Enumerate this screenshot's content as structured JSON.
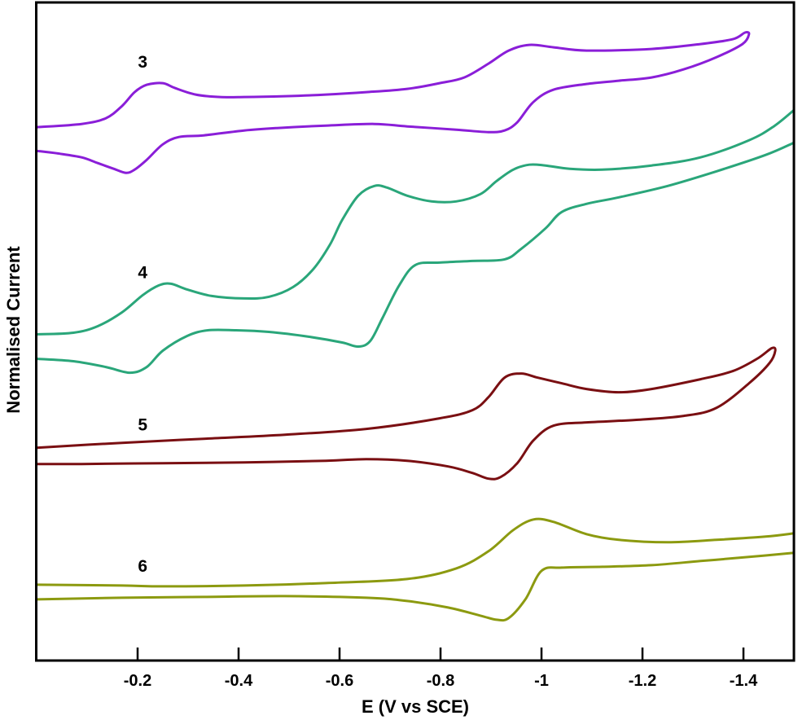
{
  "chart_data": {
    "type": "line",
    "title": "",
    "xlabel": "E (V vs SCE)",
    "ylabel": "Normalised Current",
    "xlim": [
      0,
      -1.5
    ],
    "ylim": [
      0,
      80.7
    ],
    "grid": false,
    "x_ticks": [
      -0.2,
      -0.4,
      -0.6,
      -0.8,
      -1,
      -1.2,
      -1.4
    ],
    "x_tick_labels": [
      "-0.2",
      "-0.4",
      "-0.6",
      "-0.8",
      "-1",
      "-1.2",
      "-1.4"
    ],
    "series": [
      {
        "name": "3",
        "color": "#8a1ed8",
        "label_pos": [
          -0.21,
          73.5
        ],
        "points": [
          [
            0,
            65.4
          ],
          [
            -0.089,
            65.8
          ],
          [
            -0.137,
            66.5
          ],
          [
            -0.169,
            68.0
          ],
          [
            -0.194,
            69.7
          ],
          [
            -0.218,
            70.6
          ],
          [
            -0.25,
            70.8
          ],
          [
            -0.274,
            70.2
          ],
          [
            -0.315,
            69.4
          ],
          [
            -0.363,
            69.1
          ],
          [
            -0.411,
            69.1
          ],
          [
            -0.492,
            69.2
          ],
          [
            -0.573,
            69.4
          ],
          [
            -0.653,
            69.7
          ],
          [
            -0.734,
            70.1
          ],
          [
            -0.798,
            70.8
          ],
          [
            -0.847,
            71.5
          ],
          [
            -0.895,
            73.2
          ],
          [
            -0.935,
            74.8
          ],
          [
            -0.976,
            75.5
          ],
          [
            -1.024,
            75.2
          ],
          [
            -1.089,
            74.8
          ],
          [
            -1.218,
            75.0
          ],
          [
            -1.315,
            75.6
          ],
          [
            -1.379,
            76.2
          ],
          [
            -1.403,
            77.0
          ],
          [
            -1.411,
            76.8
          ],
          [
            -1.398,
            75.6
          ],
          [
            -1.347,
            74.0
          ],
          [
            -1.282,
            72.5
          ],
          [
            -1.218,
            71.5
          ],
          [
            -1.153,
            71.1
          ],
          [
            -1.089,
            70.7
          ],
          [
            -1.024,
            70.0
          ],
          [
            -0.984,
            68.5
          ],
          [
            -0.952,
            66.0
          ],
          [
            -0.927,
            65.0
          ],
          [
            -0.895,
            64.8
          ],
          [
            -0.831,
            65.1
          ],
          [
            -0.734,
            65.5
          ],
          [
            -0.669,
            65.8
          ],
          [
            -0.573,
            65.6
          ],
          [
            -0.476,
            65.3
          ],
          [
            -0.411,
            65.0
          ],
          [
            -0.331,
            64.4
          ],
          [
            -0.282,
            64.2
          ],
          [
            -0.25,
            63.3
          ],
          [
            -0.218,
            61.4
          ],
          [
            -0.194,
            60.2
          ],
          [
            -0.177,
            59.8
          ],
          [
            -0.153,
            60.3
          ],
          [
            -0.121,
            61.0
          ],
          [
            -0.089,
            61.7
          ],
          [
            -0.04,
            62.2
          ],
          [
            0,
            62.5
          ]
        ]
      },
      {
        "name": "4",
        "color": "#2aa67a",
        "label_pos": [
          -0.21,
          47.7
        ],
        "points": [
          [
            0,
            40.0
          ],
          [
            -0.073,
            40.2
          ],
          [
            -0.121,
            41.0
          ],
          [
            -0.169,
            42.7
          ],
          [
            -0.21,
            44.8
          ],
          [
            -0.242,
            46.0
          ],
          [
            -0.266,
            46.2
          ],
          [
            -0.298,
            45.5
          ],
          [
            -0.347,
            44.7
          ],
          [
            -0.411,
            44.4
          ],
          [
            -0.46,
            44.6
          ],
          [
            -0.508,
            45.8
          ],
          [
            -0.548,
            48.0
          ],
          [
            -0.581,
            51.0
          ],
          [
            -0.605,
            54.0
          ],
          [
            -0.637,
            57.0
          ],
          [
            -0.669,
            58.2
          ],
          [
            -0.694,
            58.0
          ],
          [
            -0.734,
            57.0
          ],
          [
            -0.782,
            56.3
          ],
          [
            -0.831,
            56.3
          ],
          [
            -0.879,
            57.2
          ],
          [
            -0.911,
            58.8
          ],
          [
            -0.944,
            60.2
          ],
          [
            -0.976,
            60.8
          ],
          [
            -1.008,
            60.7
          ],
          [
            -1.056,
            60.3
          ],
          [
            -1.121,
            60.2
          ],
          [
            -1.218,
            60.7
          ],
          [
            -1.315,
            61.7
          ],
          [
            -1.411,
            63.8
          ],
          [
            -1.46,
            65.5
          ],
          [
            -1.5,
            67.5
          ]
        ],
        "return_points": [
          [
            -1.5,
            63.5
          ],
          [
            -1.444,
            62.0
          ],
          [
            -1.347,
            60.0
          ],
          [
            -1.25,
            58.2
          ],
          [
            -1.153,
            56.8
          ],
          [
            -1.089,
            56.0
          ],
          [
            -1.04,
            55.0
          ],
          [
            -1.008,
            53.0
          ],
          [
            -0.96,
            50.5
          ],
          [
            -0.927,
            49.2
          ],
          [
            -0.863,
            49.0
          ],
          [
            -0.798,
            48.8
          ],
          [
            -0.75,
            48.5
          ],
          [
            -0.718,
            46.0
          ],
          [
            -0.685,
            42.0
          ],
          [
            -0.661,
            39.2
          ],
          [
            -0.637,
            38.5
          ],
          [
            -0.605,
            39.0
          ],
          [
            -0.54,
            39.7
          ],
          [
            -0.46,
            40.3
          ],
          [
            -0.395,
            40.5
          ],
          [
            -0.339,
            40.5
          ],
          [
            -0.298,
            39.8
          ],
          [
            -0.25,
            38.0
          ],
          [
            -0.218,
            36.0
          ],
          [
            -0.185,
            35.3
          ],
          [
            -0.137,
            36.0
          ],
          [
            -0.073,
            36.7
          ],
          [
            0,
            37.0
          ]
        ]
      },
      {
        "name": "5",
        "color": "#7a0f12",
        "label_pos": [
          -0.21,
          29.0
        ],
        "points": [
          [
            0,
            26.1
          ],
          [
            -0.169,
            26.7
          ],
          [
            -0.331,
            27.2
          ],
          [
            -0.492,
            27.7
          ],
          [
            -0.653,
            28.4
          ],
          [
            -0.798,
            29.7
          ],
          [
            -0.863,
            30.7
          ],
          [
            -0.895,
            32.3
          ],
          [
            -0.927,
            34.7
          ],
          [
            -0.96,
            35.2
          ],
          [
            -0.992,
            34.7
          ],
          [
            -1.04,
            34.0
          ],
          [
            -1.089,
            33.3
          ],
          [
            -1.153,
            32.9
          ],
          [
            -1.218,
            33.3
          ],
          [
            -1.315,
            34.5
          ],
          [
            -1.379,
            35.5
          ],
          [
            -1.427,
            37.0
          ],
          [
            -1.456,
            38.3
          ],
          [
            -1.463,
            38.0
          ],
          [
            -1.452,
            36.5
          ],
          [
            -1.411,
            34.0
          ],
          [
            -1.347,
            31.0
          ],
          [
            -1.282,
            30.0
          ],
          [
            -1.185,
            29.5
          ],
          [
            -1.089,
            29.2
          ],
          [
            -1.024,
            28.8
          ],
          [
            -0.984,
            27.0
          ],
          [
            -0.952,
            24.2
          ],
          [
            -0.919,
            22.5
          ],
          [
            -0.895,
            22.3
          ],
          [
            -0.863,
            23.0
          ],
          [
            -0.815,
            23.8
          ],
          [
            -0.734,
            24.5
          ],
          [
            -0.653,
            24.7
          ],
          [
            -0.573,
            24.5
          ],
          [
            -0.411,
            24.3
          ],
          [
            -0.25,
            24.2
          ],
          [
            -0.089,
            24.1
          ],
          [
            0,
            24.1
          ]
        ]
      },
      {
        "name": "6",
        "color": "#8c9a10",
        "label_pos": [
          -0.21,
          11.7
        ],
        "points": [
          [
            0,
            9.3
          ],
          [
            -0.169,
            9.2
          ],
          [
            -0.25,
            9.1
          ],
          [
            -0.411,
            9.2
          ],
          [
            -0.573,
            9.5
          ],
          [
            -0.734,
            10.0
          ],
          [
            -0.831,
            11.3
          ],
          [
            -0.895,
            13.4
          ],
          [
            -0.944,
            16.0
          ],
          [
            -0.984,
            17.3
          ],
          [
            -1.024,
            17.0
          ],
          [
            -1.089,
            15.5
          ],
          [
            -1.153,
            14.8
          ],
          [
            -1.25,
            14.5
          ],
          [
            -1.347,
            14.8
          ],
          [
            -1.444,
            15.2
          ],
          [
            -1.5,
            15.6
          ]
        ],
        "return_points": [
          [
            -1.5,
            13.2
          ],
          [
            -1.411,
            12.7
          ],
          [
            -1.315,
            12.2
          ],
          [
            -1.218,
            11.7
          ],
          [
            -1.121,
            11.5
          ],
          [
            -1.04,
            11.4
          ],
          [
            -1.0,
            11.0
          ],
          [
            -0.968,
            7.5
          ],
          [
            -0.935,
            5.2
          ],
          [
            -0.911,
            5.0
          ],
          [
            -0.879,
            5.5
          ],
          [
            -0.815,
            6.5
          ],
          [
            -0.734,
            7.3
          ],
          [
            -0.653,
            7.7
          ],
          [
            -0.492,
            7.9
          ],
          [
            -0.331,
            7.8
          ],
          [
            -0.169,
            7.7
          ],
          [
            0,
            7.5
          ]
        ]
      }
    ]
  }
}
